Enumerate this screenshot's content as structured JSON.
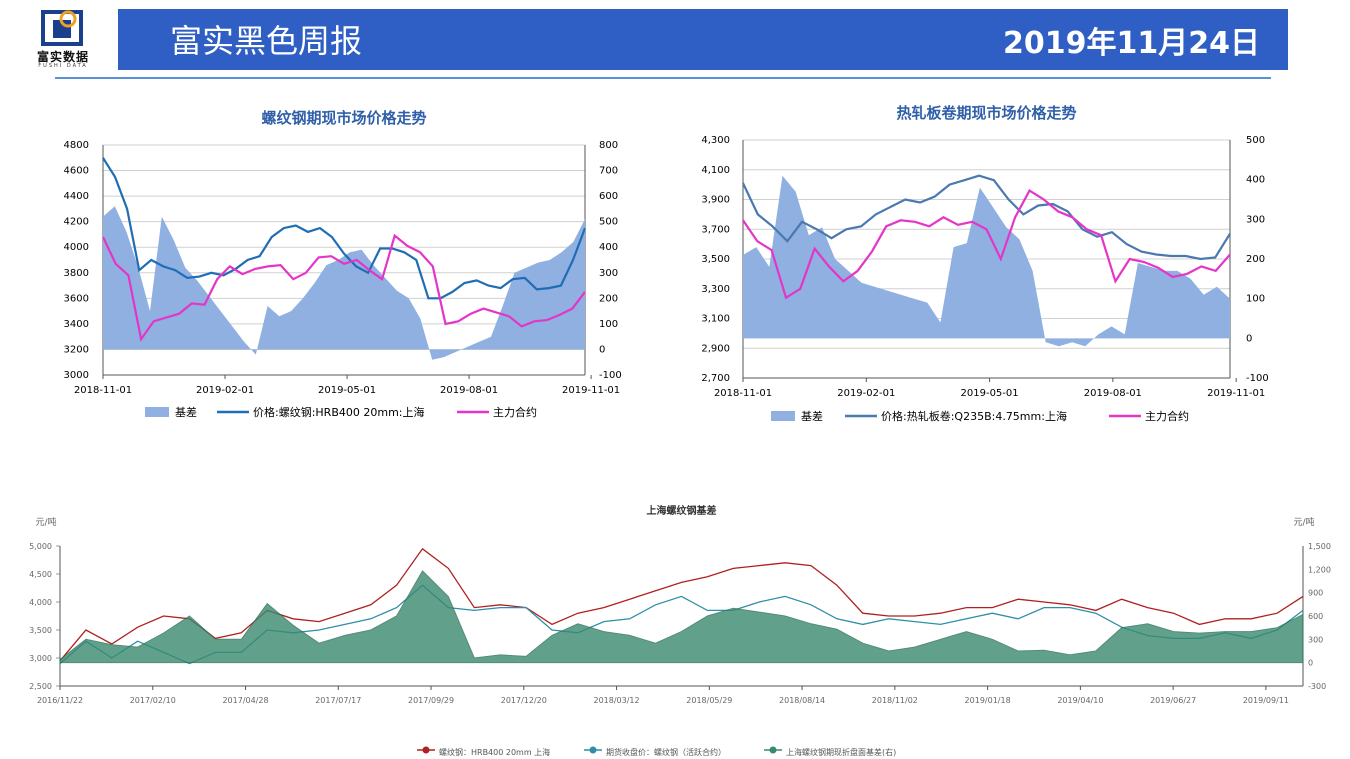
{
  "header": {
    "logo_text": "富实数据",
    "logo_sub": "FUSHI DATA",
    "title": "富实黑色周报",
    "date": "2019年11月24日"
  },
  "colors": {
    "header_bg": "#2f5fc4",
    "basis_fill": "#8fb0e0",
    "rebar_price": "#1f6db5",
    "hrc_price": "#4a78b0",
    "main_contract": "#e535c8",
    "bottom_red": "#b0201f",
    "bottom_teal": "#2e8fa8",
    "bottom_green": "#3a8a6f"
  },
  "chart_data": [
    {
      "type": "area",
      "title": "螺纹钢期现市场价格走势",
      "x_ticks": [
        "2018-11-01",
        "2019-02-01",
        "2019-05-01",
        "2019-08-01",
        "2019-11-01"
      ],
      "y_left_ticks": [
        "4800",
        "4600",
        "4400",
        "4200",
        "4000",
        "3800",
        "3600",
        "3400",
        "3200",
        "3000"
      ],
      "y_right_ticks": [
        "800",
        "700",
        "600",
        "500",
        "400",
        "300",
        "200",
        "100",
        "0",
        "-100"
      ],
      "ylim_left": [
        3000,
        4800
      ],
      "ylim_right": [
        -100,
        800
      ],
      "legend": [
        "基差",
        "价格:螺纹钢:HRB400 20mm:上海",
        "主力合约"
      ],
      "series": [
        {
          "name": "基差",
          "axis": "right",
          "values": [
            520,
            560,
            460,
            320,
            150,
            520,
            430,
            320,
            270,
            210,
            150,
            90,
            30,
            -20,
            170,
            130,
            150,
            200,
            260,
            330,
            350,
            380,
            390,
            330,
            280,
            230,
            200,
            120,
            -40,
            -30,
            -10,
            10,
            30,
            50,
            170,
            300,
            320,
            340,
            350,
            380,
            420,
            510
          ]
        },
        {
          "name": "价格:螺纹钢:HRB400 20mm:上海",
          "axis": "left",
          "values": [
            4700,
            4550,
            4300,
            3820,
            3900,
            3850,
            3820,
            3760,
            3770,
            3800,
            3780,
            3830,
            3900,
            3930,
            4080,
            4150,
            4170,
            4120,
            4150,
            4080,
            3950,
            3850,
            3800,
            3990,
            3990,
            3960,
            3900,
            3600,
            3600,
            3650,
            3720,
            3740,
            3700,
            3680,
            3750,
            3760,
            3670,
            3680,
            3700,
            3900,
            4150
          ]
        },
        {
          "name": "主力合约",
          "axis": "left",
          "values": [
            4080,
            3870,
            3780,
            3280,
            3420,
            3450,
            3480,
            3560,
            3550,
            3750,
            3850,
            3790,
            3830,
            3850,
            3860,
            3750,
            3800,
            3920,
            3930,
            3870,
            3900,
            3820,
            3750,
            4090,
            4010,
            3960,
            3850,
            3400,
            3420,
            3480,
            3520,
            3490,
            3460,
            3380,
            3420,
            3430,
            3470,
            3520,
            3650
          ]
        }
      ]
    },
    {
      "type": "area",
      "title": "热轧板卷期现市场价格走势",
      "x_ticks": [
        "2018-11-01",
        "2019-02-01",
        "2019-05-01",
        "2019-08-01",
        "2019-11-01"
      ],
      "y_left_ticks": [
        "4,300",
        "4,100",
        "3,900",
        "3,700",
        "3,500",
        "3,300",
        "3,100",
        "2,900",
        "2,700"
      ],
      "y_right_ticks": [
        "500",
        "400",
        "300",
        "200",
        "100",
        "0",
        "-100"
      ],
      "ylim_left": [
        2700,
        4300
      ],
      "ylim_right": [
        -100,
        500
      ],
      "legend": [
        "基差",
        "价格:热轧板卷:Q235B:4.75mm:上海",
        "主力合约"
      ],
      "series": [
        {
          "name": "基差",
          "axis": "right",
          "values": [
            210,
            230,
            180,
            410,
            370,
            260,
            280,
            200,
            170,
            140,
            130,
            120,
            110,
            100,
            90,
            40,
            230,
            240,
            380,
            330,
            280,
            250,
            170,
            -10,
            -20,
            -10,
            -20,
            10,
            30,
            10,
            190,
            180,
            170,
            170,
            150,
            110,
            130,
            100
          ]
        },
        {
          "name": "价格:热轧板卷:Q235B:4.75mm:上海",
          "axis": "left",
          "values": [
            4010,
            3800,
            3720,
            3620,
            3750,
            3700,
            3640,
            3700,
            3720,
            3800,
            3850,
            3900,
            3880,
            3920,
            4000,
            4030,
            4060,
            4030,
            3900,
            3800,
            3860,
            3870,
            3820,
            3700,
            3650,
            3680,
            3600,
            3550,
            3530,
            3520,
            3520,
            3500,
            3510,
            3670
          ]
        },
        {
          "name": "主力合约",
          "axis": "left",
          "values": [
            3760,
            3620,
            3560,
            3240,
            3300,
            3570,
            3450,
            3350,
            3420,
            3550,
            3720,
            3760,
            3750,
            3720,
            3780,
            3730,
            3750,
            3700,
            3500,
            3780,
            3960,
            3900,
            3820,
            3780,
            3700,
            3660,
            3350,
            3500,
            3480,
            3440,
            3380,
            3400,
            3450,
            3420,
            3530
          ]
        }
      ]
    },
    {
      "type": "line",
      "title": "上海螺纹钢基差",
      "unit_left": "元/吨",
      "unit_right": "元/吨",
      "x_ticks": [
        "2016/11/22",
        "2017/02/10",
        "2017/04/28",
        "2017/07/17",
        "2017/09/29",
        "2017/12/20",
        "2018/03/12",
        "2018/05/29",
        "2018/08/14",
        "2018/11/02",
        "2019/01/18",
        "2019/04/10",
        "2019/06/27",
        "2019/09/11"
      ],
      "y_left_ticks": [
        "5,000",
        "4,500",
        "4,000",
        "3,500",
        "3,000",
        "2,500"
      ],
      "y_right_ticks": [
        "1,500",
        "1,200",
        "900",
        "600",
        "300",
        "0",
        "-300"
      ],
      "ylim_left": [
        2500,
        5000
      ],
      "ylim_right": [
        -300,
        1500
      ],
      "legend": [
        "螺纹钢：HRB400 20mm 上海",
        "期货收盘价：螺纹钢（活跃合约）",
        "上海螺纹钢期现折盘面基差(右)"
      ],
      "series": [
        {
          "name": "螺纹钢：HRB400 20mm 上海",
          "axis": "left",
          "values": [
            2950,
            3500,
            3250,
            3550,
            3750,
            3700,
            3350,
            3450,
            3850,
            3700,
            3650,
            3800,
            3950,
            4300,
            4950,
            4600,
            3900,
            3950,
            3900,
            3600,
            3800,
            3900,
            4050,
            4200,
            4350,
            4450,
            4600,
            4650,
            4700,
            4650,
            4300,
            3800,
            3750,
            3750,
            3800,
            3900,
            3900,
            4050,
            4000,
            3950,
            3850,
            4050,
            3900,
            3800,
            3600,
            3700,
            3700,
            3800,
            4100
          ]
        },
        {
          "name": "期货收盘价：螺纹钢（活跃合约）",
          "axis": "left",
          "values": [
            2900,
            3300,
            3000,
            3300,
            3100,
            2900,
            3100,
            3100,
            3500,
            3450,
            3500,
            3600,
            3700,
            3900,
            4300,
            3900,
            3850,
            3900,
            3900,
            3500,
            3450,
            3650,
            3700,
            3950,
            4100,
            3850,
            3850,
            4000,
            4100,
            3950,
            3700,
            3600,
            3700,
            3650,
            3600,
            3700,
            3800,
            3700,
            3900,
            3900,
            3800,
            3550,
            3400,
            3350,
            3350,
            3450,
            3350,
            3500,
            3850
          ]
        },
        {
          "name": "上海螺纹钢期现折盘面基差(右)",
          "axis": "right",
          "values": [
            40,
            300,
            230,
            200,
            380,
            600,
            300,
            300,
            760,
            480,
            250,
            350,
            420,
            600,
            1180,
            850,
            60,
            100,
            80,
            350,
            500,
            400,
            350,
            250,
            400,
            600,
            700,
            650,
            600,
            500,
            430,
            250,
            150,
            200,
            300,
            400,
            300,
            150,
            160,
            100,
            150,
            450,
            500,
            400,
            380,
            400,
            400,
            450,
            620
          ]
        }
      ]
    }
  ]
}
